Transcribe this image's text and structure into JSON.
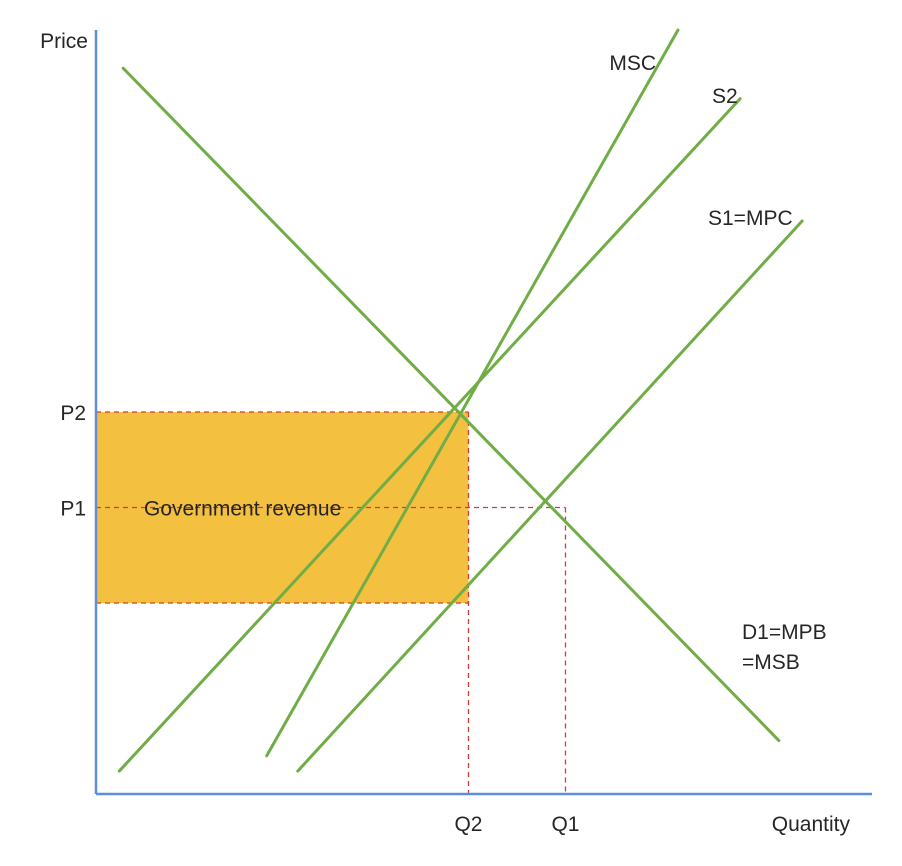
{
  "chart_data": {
    "type": "line",
    "title": "",
    "xlabel": "Quantity",
    "ylabel": "Price",
    "grid": false,
    "legend": "none",
    "xlim": [
      0,
      10
    ],
    "ylim": [
      0,
      10
    ],
    "lines": [
      {
        "name": "MSC",
        "from": [
          2.2,
          0.5
        ],
        "to": [
          7.5,
          10.0
        ]
      },
      {
        "name": "S2",
        "from": [
          0.3,
          0.3
        ],
        "to": [
          8.3,
          9.1
        ]
      },
      {
        "name": "S1=MPC",
        "from": [
          2.6,
          0.3
        ],
        "to": [
          9.1,
          7.5
        ]
      },
      {
        "name": "D1=MPB\n=MSB",
        "from": [
          0.35,
          9.5
        ],
        "to": [
          8.8,
          0.7
        ]
      }
    ],
    "levels": {
      "price": [
        {
          "label": "P2",
          "value": 5.0
        },
        {
          "label": "P1",
          "value": 3.75
        },
        {
          "label": "",
          "value": 2.5
        }
      ],
      "quantity": [
        {
          "label": "Q2",
          "value": 4.8
        },
        {
          "label": "Q1",
          "value": 6.05
        }
      ]
    },
    "shaded_area": {
      "label": "Government revenue",
      "x": [
        0,
        4.8
      ],
      "y": [
        2.5,
        5.0
      ],
      "color": "#f4c03f"
    },
    "colors": {
      "axis": "#5b8fd6",
      "curve": "#70ad47",
      "guide": "#d43a3a",
      "text": "#262626"
    }
  }
}
